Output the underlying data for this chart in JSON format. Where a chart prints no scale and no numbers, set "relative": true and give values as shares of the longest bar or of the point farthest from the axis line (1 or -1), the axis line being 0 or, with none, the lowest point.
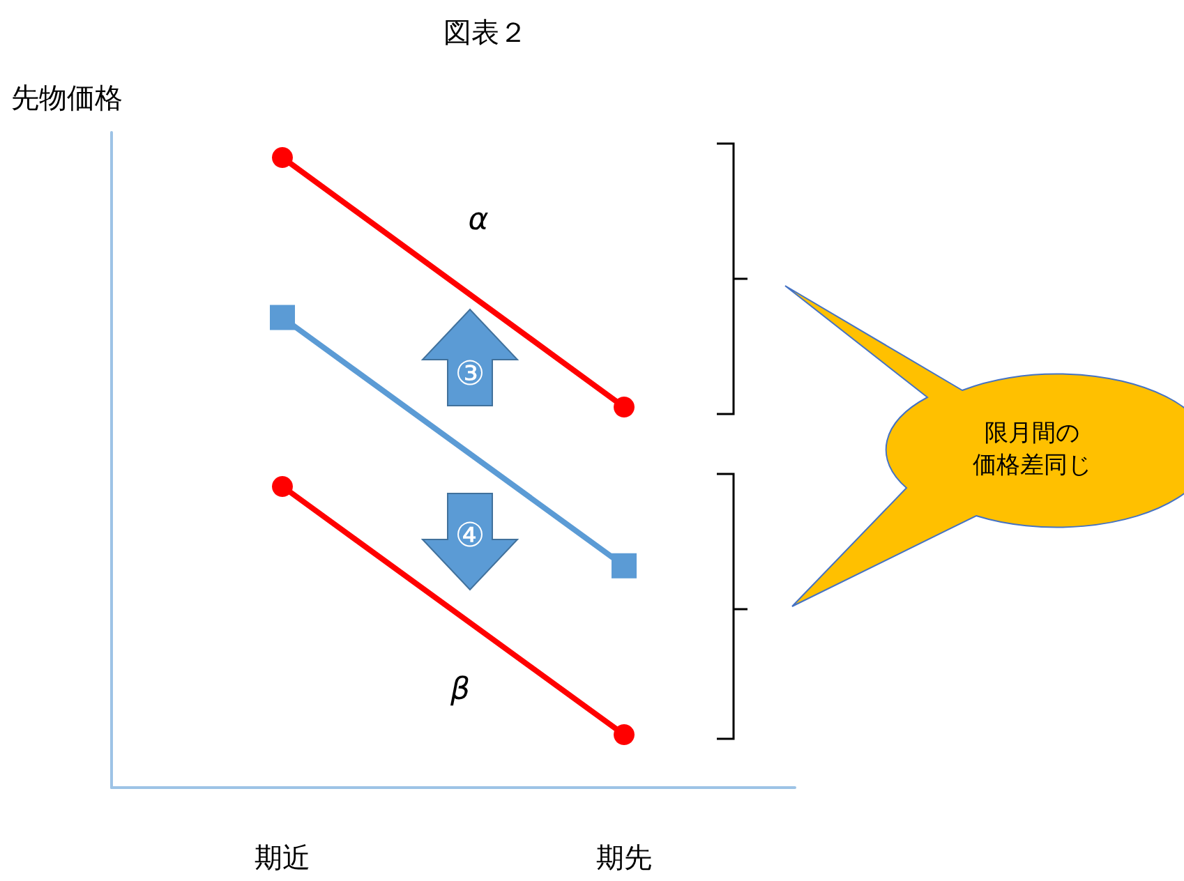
{
  "chart_data": {
    "type": "line",
    "title": "図表２",
    "ylabel": "先物価格",
    "categories": [
      "期近",
      "期先"
    ],
    "relative": true,
    "tick_labels": "x",
    "grid": false,
    "line_style": "solid",
    "series": [
      {
        "color": "#ff0000",
        "marker": "circle",
        "values": [
          1,
          0.604
        ]
      },
      {
        "color": "#5b9bd5",
        "marker": "square",
        "values": [
          0.746,
          0.352
        ]
      },
      {
        "color": "#ff0000",
        "marker": "circle",
        "values": [
          0.478,
          0.084
        ]
      }
    ],
    "annotations": [
      "α",
      "β",
      "③",
      "④",
      "限月間の価格差同じ"
    ]
  }
}
